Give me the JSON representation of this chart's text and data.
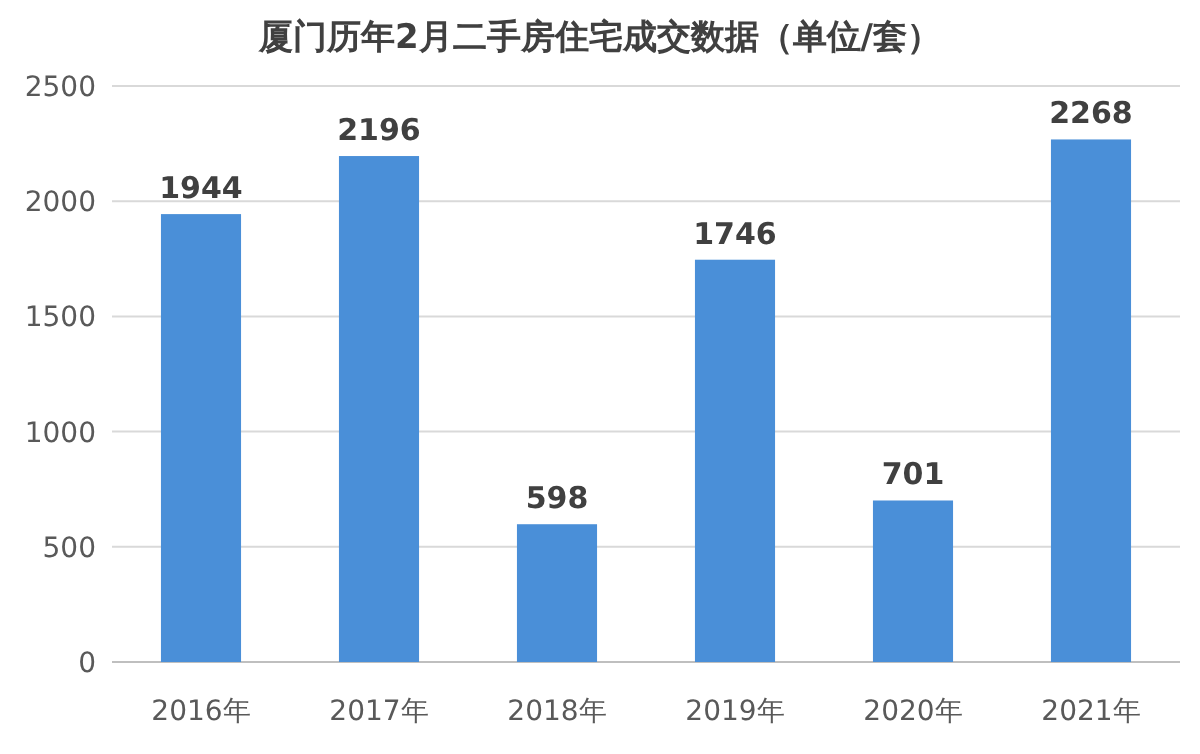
{
  "chart_data": {
    "type": "bar",
    "title": "厦门历年2月二手房住宅成交数据（单位/套）",
    "categories": [
      "2016年",
      "2017年",
      "2018年",
      "2019年",
      "2020年",
      "2021年"
    ],
    "values": [
      1944,
      2196,
      598,
      1746,
      701,
      2268
    ],
    "color": "#4a8fd8",
    "ylim": [
      0,
      2500
    ],
    "yticks": [
      0,
      500,
      1000,
      1500,
      2000,
      2500
    ],
    "grid": "y",
    "data_labels": true
  }
}
